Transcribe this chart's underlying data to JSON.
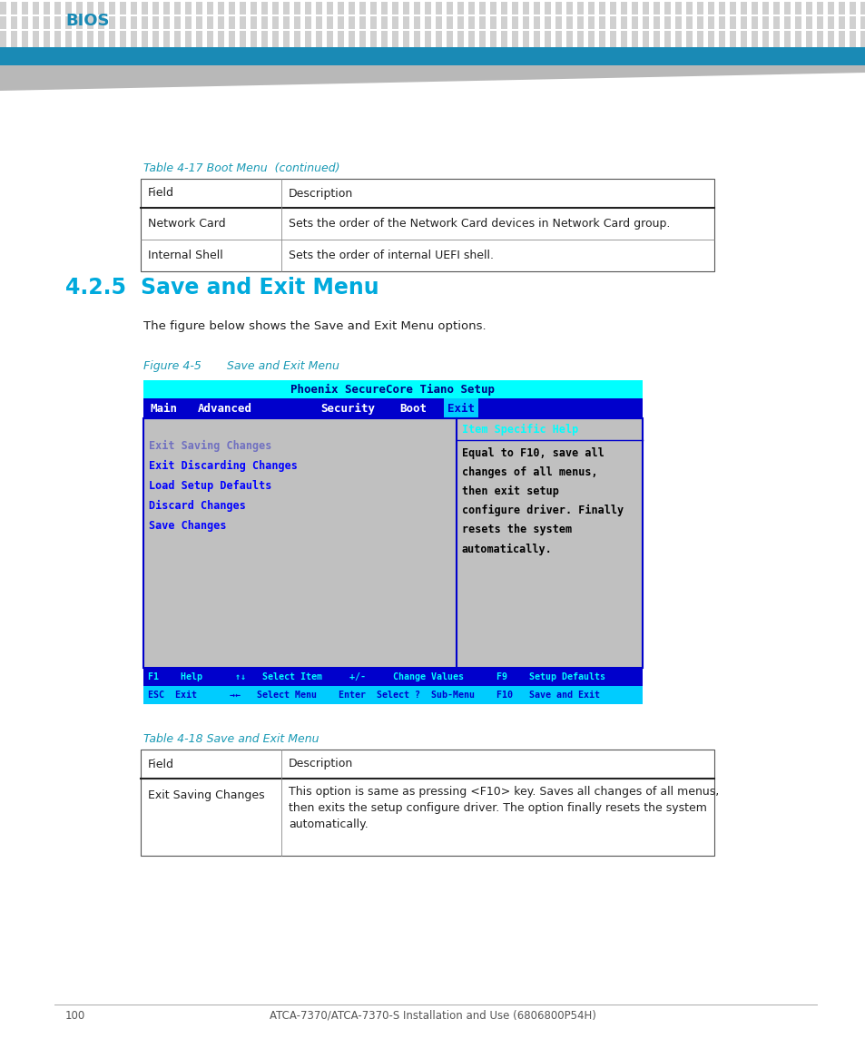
{
  "bg_color": "#ffffff",
  "header_dot_color": "#d0d0d0",
  "bios_text": "BIOS",
  "bios_color": "#1a8ab5",
  "blue_bar_color": "#1a8ab5",
  "table17_title": "Table 4-17 Boot Menu  (continued)",
  "table17_color": "#1a9ab5",
  "table17_rows": [
    [
      "Field",
      "Description"
    ],
    [
      "Network Card",
      "Sets the order of the Network Card devices in Network Card group."
    ],
    [
      "Internal Shell",
      "Sets the order of internal UEFI shell."
    ]
  ],
  "section_num": "4.2.5",
  "section_title": "Save and Exit Menu",
  "section_color": "#00aadd",
  "intro_text": "The figure below shows the Save and Exit Menu options.",
  "fig_label": "Figure 4-5",
  "fig_title": "     Save and Exit Menu",
  "fig_label_color": "#1a9ab5",
  "bios_screen_title": "Phoenix SecureCore Tiano Setup",
  "bios_screen_title_bg": "#00ffff",
  "bios_screen_title_fg": "#000080",
  "bios_menu_bg": "#0000cc",
  "bios_menu_fg": "#ffffff",
  "bios_menu_items": [
    "Main",
    "Advanced",
    "Security",
    "Boot",
    "Exit"
  ],
  "bios_exit_highlight_bg": "#00ccff",
  "bios_exit_highlight_fg": "#0000cc",
  "bios_body_bg": "#c0c0c0",
  "bios_border_color": "#0000cc",
  "bios_menu_left": [
    "Exit Saving Changes",
    "Exit Discarding Changes",
    "Load Setup Defaults",
    "Discard Changes",
    "Save Changes"
  ],
  "bios_menu_left_first_color": "#c0c0c0",
  "bios_menu_left_color": "#0000ff",
  "bios_help_title": "Item Specific Help",
  "bios_help_title_color": "#00ffff",
  "bios_help_title_bg": "#c0c0c0",
  "bios_help_separator_color": "#0000cc",
  "bios_help_text": "Equal to F10, save all\nchanges of all menus,\nthen exit setup\nconfigure driver. Finally\nresets the system\nautomatically.",
  "bios_help_text_color": "#000000",
  "bios_footer1_bg": "#0000cc",
  "bios_footer1_fg": "#00ffff",
  "bios_footer2_bg": "#00ccff",
  "bios_footer2_fg": "#0000cc",
  "bios_footer_left": "F1    Help      ↑↓   Select Item     +/-     Change Values      F9    Setup Defaults",
  "bios_footer_right": "ESC  Exit      →←   Select Menu    Enter  Select ?  Sub-Menu    F10   Save and Exit",
  "table18_title": "Table 4-18 Save and Exit Menu",
  "table18_color": "#1a9ab5",
  "table18_rows": [
    [
      "Field",
      "Description"
    ],
    [
      "Exit Saving Changes",
      "This option is same as pressing <F10> key. Saves all changes of all menus,\nthen exits the setup configure driver. The option finally resets the system\nautomatically."
    ]
  ],
  "footer_page": "100",
  "footer_text": "ATCA-7370/ATCA-7370-S Installation and Use (6806800P54H)",
  "footer_color": "#555555"
}
